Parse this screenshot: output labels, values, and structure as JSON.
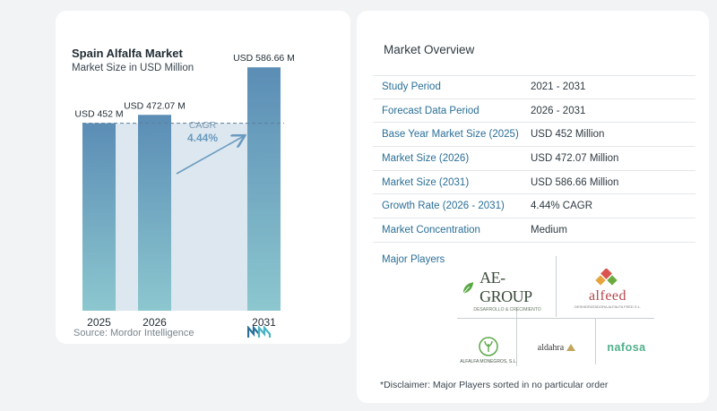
{
  "chart_data": {
    "type": "bar",
    "title": "Spain Alfalfa Market",
    "subtitle": "Market Size in USD Million",
    "categories": [
      "2025",
      "2026",
      "2031"
    ],
    "values": [
      452,
      472.07,
      586.66
    ],
    "data_labels": [
      "USD 452 M",
      "USD 472.07 M",
      "USD 586.66 M"
    ],
    "cagr_label": "CAGR",
    "cagr_value": "4.44%",
    "ylim": [
      0,
      600
    ],
    "grid": false,
    "colors": {
      "bar_top": "#5b8db5",
      "bar_bottom": "#8cc7cf",
      "cagr": "#6a9bbf",
      "shade": "#dde7ef"
    }
  },
  "source": "Source:  Mordor Intelligence",
  "overview": {
    "title": "Market Overview",
    "rows": [
      {
        "label": "Study Period",
        "value": "2021 - 2031"
      },
      {
        "label": "Forecast Data Period",
        "value": "2026 - 2031"
      },
      {
        "label": "Base Year Market Size (2025)",
        "value": "USD 452 Million"
      },
      {
        "label": "Market Size (2026)",
        "value": "USD 472.07 Million"
      },
      {
        "label": "Market Size (2031)",
        "value": "USD 586.66 Million"
      },
      {
        "label": "Growth Rate (2026 - 2031)",
        "value": "4.44% CAGR"
      },
      {
        "label": "Market Concentration",
        "value": "Medium"
      }
    ],
    "players_title": "Major Players",
    "players": [
      {
        "name": "AE-GROUP",
        "tagline": "DESARROLLO & CRECIMIENTO"
      },
      {
        "name": "alfeed",
        "tagline": "DESHIDRATADORA ALFALFA FEED S.L."
      },
      {
        "name": "ALFALFA MONEGROS, S.L."
      },
      {
        "name": "aldahra"
      },
      {
        "name": "nafosa"
      }
    ],
    "disclaimer": "*Disclaimer: Major Players sorted in no particular order"
  }
}
